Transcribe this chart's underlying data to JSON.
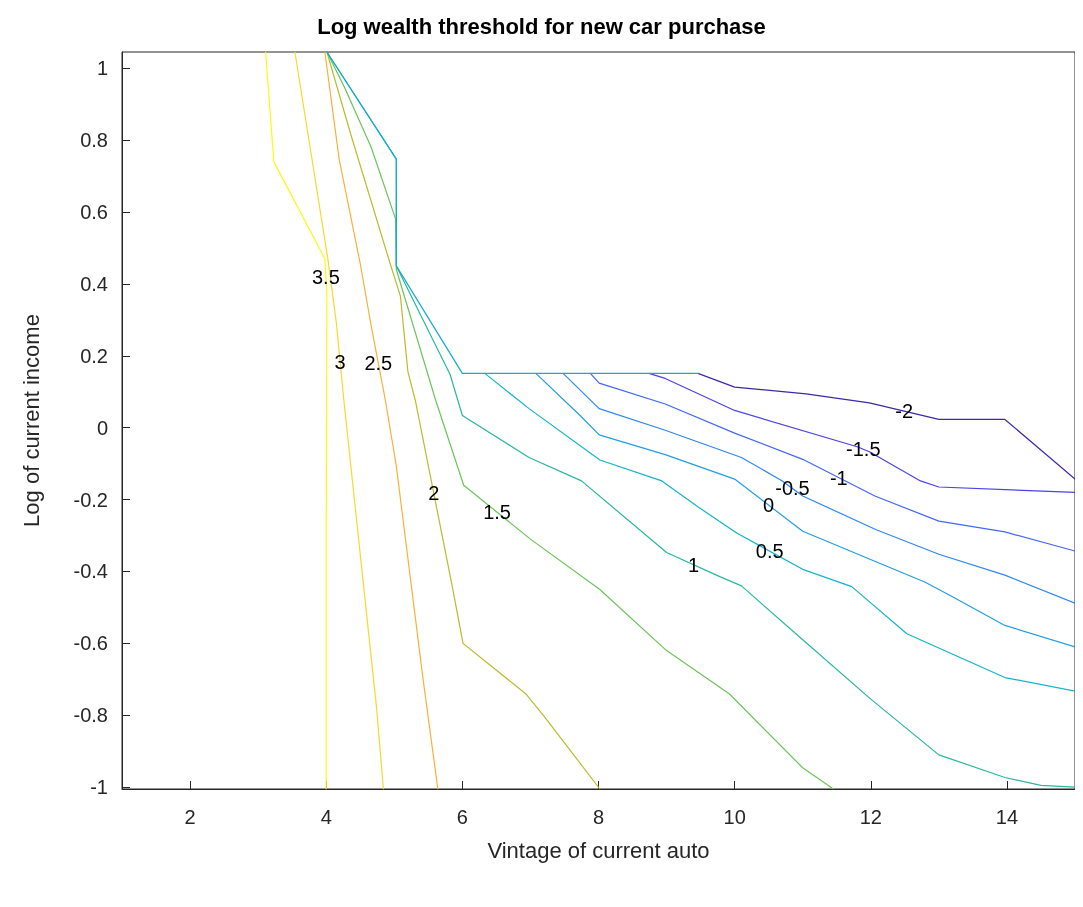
{
  "chart_data": {
    "type": "line",
    "title": "Log wealth threshold for new car purchase",
    "xlabel": "Vintage of current auto",
    "ylabel": "Log of current income",
    "xlim": [
      1,
      15
    ],
    "ylim": [
      -1.005,
      1.045
    ],
    "xticks": [
      2,
      4,
      6,
      8,
      10,
      12,
      14
    ],
    "yticks": [
      -1,
      -0.8,
      -0.6,
      -0.4,
      -0.2,
      0,
      0.2,
      0.4,
      0.6,
      0.8,
      1
    ],
    "grid": false,
    "legend": false,
    "marker": "none",
    "line_style": "solid",
    "series": [
      {
        "name": "3.5",
        "color": "#f9fb14",
        "x": [
          3.11,
          3.23,
          3.98,
          4.01,
          4.0,
          4.0
        ],
        "values": [
          1.045,
          0.74,
          0.47,
          0.37,
          -0.3,
          -1.005
        ]
      },
      {
        "name": "3",
        "color": "#f6d930",
        "x": [
          3.54,
          4.02,
          4.15,
          4.26,
          4.74,
          4.84
        ],
        "values": [
          1.045,
          0.475,
          0.29,
          0.075,
          -0.78,
          -1.005
        ]
      },
      {
        "name": "2.5",
        "color": "#f9b13c",
        "x": [
          3.98,
          4.19,
          4.5,
          4.66,
          4.87,
          5.03,
          5.42,
          5.64
        ],
        "values": [
          1.045,
          0.747,
          0.456,
          0.284,
          0.075,
          -0.107,
          -0.695,
          -1.005
        ]
      },
      {
        "name": "2",
        "color": "#bbbc2c",
        "x": [
          4.01,
          4.37,
          4.94,
          5.09,
          5.2,
          5.31,
          5.85,
          6.01,
          6.93,
          7.19,
          8.02
        ],
        "values": [
          1.045,
          0.81,
          0.456,
          0.366,
          0.156,
          0.075,
          -0.44,
          -0.6,
          -0.74,
          -0.8,
          -1.005
        ]
      },
      {
        "name": "1.5",
        "color": "#6cc45a",
        "x": [
          4.01,
          4.27,
          4.66,
          5.02,
          5.03,
          5.61,
          6.02,
          7.0,
          8.02,
          9.0,
          9.92,
          11.0,
          11.45
        ],
        "values": [
          1.045,
          0.946,
          0.78,
          0.58,
          0.44,
          0.075,
          -0.16,
          -0.31,
          -0.45,
          -0.62,
          -0.74,
          -0.946,
          -1.005
        ]
      },
      {
        "name": "1",
        "color": "#2ab7a0",
        "x": [
          4.01,
          5.03,
          5.03,
          5.82,
          6.0,
          6.98,
          7.75,
          9.0,
          9.79,
          10.1,
          11.0,
          12.0,
          13.0,
          13.97,
          14.5,
          15
        ],
        "values": [
          1.045,
          0.747,
          0.45,
          0.148,
          0.034,
          -0.083,
          -0.148,
          -0.347,
          -0.415,
          -0.44,
          -0.59,
          -0.755,
          -0.91,
          -0.973,
          -0.995,
          -1.0
        ]
      },
      {
        "name": "0.5",
        "color": "#12b5cb",
        "x": [
          6.33,
          6.98,
          8.02,
          8.93,
          9.46,
          10.03,
          11.0,
          11.72,
          12.53,
          13.97,
          15
        ],
        "values": [
          0.151,
          0.053,
          -0.09,
          -0.148,
          -0.22,
          -0.293,
          -0.394,
          -0.442,
          -0.573,
          -0.695,
          -0.733
        ]
      },
      {
        "name": "0",
        "color": "#229ee6",
        "x": [
          7.08,
          7.73,
          8.01,
          8.98,
          10.0,
          11.0,
          12.8,
          13.2,
          13.97,
          15
        ],
        "values": [
          0.151,
          0.034,
          -0.02,
          -0.075,
          -0.143,
          -0.288,
          -0.43,
          -0.47,
          -0.55,
          -0.61
        ]
      },
      {
        "name": "-0.5",
        "color": "#2e87f7",
        "x": [
          7.48,
          8.01,
          8.98,
          10.1,
          10.7,
          11.0,
          12.08,
          13.0,
          13.97,
          15
        ],
        "values": [
          0.151,
          0.053,
          -0.007,
          -0.083,
          -0.148,
          -0.19,
          -0.284,
          -0.352,
          -0.41,
          -0.488
        ]
      },
      {
        "name": "-1",
        "color": "#4466fd",
        "x": [
          7.88,
          8.01,
          8.98,
          10.0,
          11.0,
          12.06,
          13.0,
          13.97,
          15
        ],
        "values": [
          0.151,
          0.124,
          0.066,
          -0.015,
          -0.088,
          -0.19,
          -0.26,
          -0.29,
          -0.343
        ]
      },
      {
        "name": "-1.5",
        "color": "#4a43ea",
        "x": [
          8.74,
          8.98,
          10.0,
          11.8,
          11.98,
          12.73,
          13.0,
          15
        ],
        "values": [
          0.151,
          0.137,
          0.048,
          -0.053,
          -0.067,
          -0.148,
          -0.165,
          -0.18
        ]
      },
      {
        "name": "-2",
        "color": "#3e28a8",
        "x": [
          9.46,
          10.0,
          11.05,
          11.98,
          13.0,
          13.97,
          15
        ],
        "values": [
          0.151,
          0.113,
          0.094,
          0.069,
          0.023,
          0.023,
          -0.143
        ]
      },
      {
        "color": "#16abd3",
        "x": [
          4.01,
          5.03,
          5.03,
          6.0,
          9.46
        ],
        "values": [
          1.045,
          0.747,
          0.45,
          0.151,
          0.151
        ]
      }
    ]
  }
}
